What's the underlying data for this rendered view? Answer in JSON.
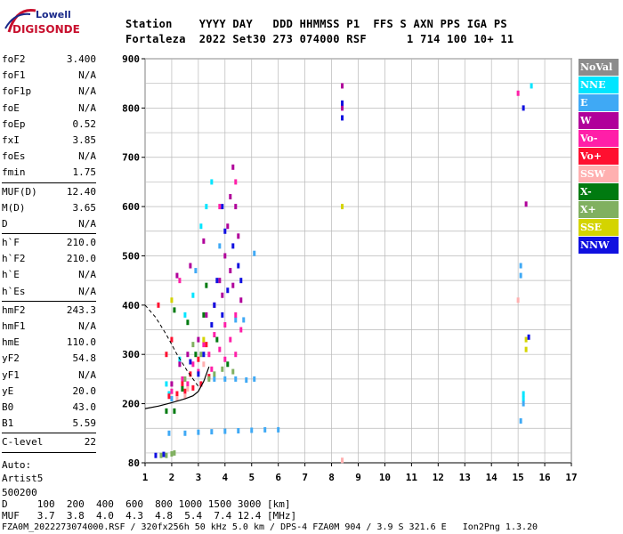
{
  "logo": {
    "line1": "Lowell",
    "line2": "DIGISONDE"
  },
  "header": {
    "line1": "Station    YYYY DAY   DDD HHMMSS P1  FFS S AXN PPS IGA PS",
    "line2": "Fortaleza  2022 Set30 273 074000 RSF      1 714 100 10+ 11"
  },
  "params": [
    [
      {
        "name": "foF2",
        "value": "3.400"
      },
      {
        "name": "foF1",
        "value": "N/A"
      },
      {
        "name": "foF1p",
        "value": "N/A"
      },
      {
        "name": "foE",
        "value": "N/A"
      },
      {
        "name": "foEp",
        "value": "0.52"
      },
      {
        "name": "fxI",
        "value": "3.85"
      },
      {
        "name": "foEs",
        "value": "N/A"
      },
      {
        "name": "fmin",
        "value": "1.75"
      }
    ],
    [
      {
        "name": "MUF(D)",
        "value": "12.40"
      },
      {
        "name": "M(D)",
        "value": "3.65"
      },
      {
        "name": "D",
        "value": "N/A"
      }
    ],
    [
      {
        "name": "h`F",
        "value": "210.0"
      },
      {
        "name": "h`F2",
        "value": "210.0"
      },
      {
        "name": "h`E",
        "value": "N/A"
      },
      {
        "name": "h`Es",
        "value": "N/A"
      }
    ],
    [
      {
        "name": "hmF2",
        "value": "243.3"
      },
      {
        "name": "hmF1",
        "value": "N/A"
      },
      {
        "name": "hmE",
        "value": "110.0"
      },
      {
        "name": "yF2",
        "value": "54.8"
      },
      {
        "name": "yF1",
        "value": "N/A"
      },
      {
        "name": "yE",
        "value": "20.0"
      },
      {
        "name": "B0",
        "value": "43.0"
      },
      {
        "name": "B1",
        "value": "5.59"
      }
    ],
    [
      {
        "name": "C-level",
        "value": "22"
      }
    ]
  ],
  "auto": {
    "line1": "Auto:",
    "line2": "Artist5",
    "line3": "500200"
  },
  "legend": [
    {
      "label": "NoVal",
      "color": "#8c8c8c"
    },
    {
      "label": "NNE",
      "color": "#00e5ff"
    },
    {
      "label": "E",
      "color": "#3fa9f5"
    },
    {
      "label": "W",
      "color": "#b0009a"
    },
    {
      "label": "Vo-",
      "color": "#ff1fa8"
    },
    {
      "label": "Vo+",
      "color": "#ff1030"
    },
    {
      "label": "SSW",
      "color": "#ffb0b0"
    },
    {
      "label": "X-",
      "color": "#007a10"
    },
    {
      "label": "X+",
      "color": "#80b060"
    },
    {
      "label": "SSE",
      "color": "#d4d400"
    },
    {
      "label": "NNW",
      "color": "#1010e0"
    }
  ],
  "footer": {
    "row1": "D     100  200  400  600  800 1000 1500 3000 [km]",
    "row2": "MUF   3.7  3.8  4.0  4.3  4.8  5.4  7.4 12.4 [MHz]",
    "row3": "FZA0M_2022273074000.RSF / 320fx256h 50 kHz 5.0 km / DPS-4 FZA0M 904 / 3.9 S 321.6 E   Ion2Png 1.3.20"
  },
  "chart_data": {
    "type": "scatter",
    "title": "",
    "xlabel": "",
    "ylabel": "",
    "xlim": [
      1,
      17
    ],
    "ylim": [
      80,
      900
    ],
    "x_ticks": [
      1,
      2,
      3,
      4,
      5,
      6,
      7,
      8,
      9,
      10,
      11,
      12,
      13,
      14,
      15,
      16,
      17
    ],
    "y_ticks": [
      80,
      200,
      300,
      400,
      500,
      600,
      700,
      800,
      900
    ],
    "grid": true,
    "legend_position": "right",
    "traces": [
      {
        "name": "trace-profile",
        "x": [
          1.0,
          1.5,
          2.0,
          2.5,
          2.8,
          3.0,
          3.2,
          3.4
        ],
        "y": [
          190,
          195,
          202,
          210,
          216,
          225,
          245,
          275
        ]
      },
      {
        "name": "trace-dashed",
        "x": [
          1.0,
          1.4,
          1.8,
          2.2,
          2.6,
          3.0
        ],
        "y": [
          400,
          375,
          340,
          300,
          265,
          235
        ]
      }
    ],
    "series": [
      {
        "name": "NNE",
        "points": [
          [
            1.9,
            220
          ],
          [
            2.3,
            290
          ],
          [
            2.8,
            420
          ],
          [
            3.1,
            560
          ],
          [
            3.3,
            600
          ],
          [
            3.5,
            650
          ],
          [
            2.5,
            380
          ],
          [
            1.8,
            240
          ],
          [
            15.2,
            210
          ],
          [
            15.2,
            220
          ],
          [
            15.5,
            845
          ]
        ]
      },
      {
        "name": "E",
        "points": [
          [
            1.9,
            140
          ],
          [
            2.5,
            140
          ],
          [
            3.0,
            142
          ],
          [
            3.5,
            143
          ],
          [
            4.0,
            144
          ],
          [
            4.5,
            145
          ],
          [
            5.0,
            146
          ],
          [
            5.5,
            147
          ],
          [
            6.0,
            147
          ],
          [
            3.6,
            250
          ],
          [
            4.0,
            250
          ],
          [
            4.4,
            250
          ],
          [
            4.8,
            248
          ],
          [
            5.1,
            250
          ],
          [
            4.4,
            370
          ],
          [
            4.7,
            370
          ],
          [
            2.0,
            210
          ],
          [
            2.9,
            470
          ],
          [
            3.8,
            520
          ],
          [
            15.1,
            480
          ],
          [
            15.1,
            460
          ],
          [
            15.1,
            165
          ],
          [
            15.2,
            200
          ],
          [
            5.1,
            505
          ]
        ]
      },
      {
        "name": "W",
        "points": [
          [
            3.8,
            450
          ],
          [
            4.0,
            500
          ],
          [
            4.1,
            560
          ],
          [
            4.2,
            620
          ],
          [
            4.3,
            680
          ],
          [
            4.4,
            600
          ],
          [
            3.9,
            420
          ],
          [
            4.5,
            540
          ],
          [
            4.3,
            440
          ],
          [
            3.6,
            400
          ],
          [
            3.3,
            380
          ],
          [
            3.0,
            330
          ],
          [
            2.6,
            300
          ],
          [
            2.3,
            280
          ],
          [
            2.0,
            240
          ],
          [
            2.7,
            480
          ],
          [
            2.2,
            460
          ],
          [
            3.2,
            530
          ],
          [
            4.2,
            470
          ],
          [
            4.6,
            410
          ],
          [
            8.4,
            845
          ],
          [
            8.4,
            800
          ],
          [
            15.3,
            605
          ]
        ]
      },
      {
        "name": "Vo-",
        "points": [
          [
            2.0,
            225
          ],
          [
            2.4,
            250
          ],
          [
            2.8,
            280
          ],
          [
            3.2,
            320
          ],
          [
            3.6,
            340
          ],
          [
            4.0,
            360
          ],
          [
            4.4,
            380
          ],
          [
            3.4,
            300
          ],
          [
            3.0,
            265
          ],
          [
            2.6,
            240
          ],
          [
            3.8,
            310
          ],
          [
            4.2,
            330
          ],
          [
            4.6,
            350
          ],
          [
            3.5,
            270
          ],
          [
            4.0,
            290
          ],
          [
            4.4,
            300
          ],
          [
            2.3,
            450
          ],
          [
            3.8,
            600
          ],
          [
            4.4,
            650
          ],
          [
            15.0,
            830
          ]
        ]
      },
      {
        "name": "Vo+",
        "points": [
          [
            1.9,
            215
          ],
          [
            2.2,
            220
          ],
          [
            2.5,
            225
          ],
          [
            2.8,
            232
          ],
          [
            3.1,
            240
          ],
          [
            3.4,
            255
          ],
          [
            3.0,
            290
          ],
          [
            3.3,
            320
          ],
          [
            2.7,
            260
          ],
          [
            2.4,
            240
          ],
          [
            1.8,
            300
          ],
          [
            1.5,
            400
          ],
          [
            2.0,
            330
          ]
        ]
      },
      {
        "name": "SSW",
        "points": [
          [
            2.2,
            210
          ],
          [
            2.5,
            215
          ],
          [
            2.6,
            230
          ],
          [
            3.2,
            280
          ],
          [
            8.4,
            85
          ],
          [
            15.0,
            410
          ]
        ]
      },
      {
        "name": "X-",
        "points": [
          [
            1.8,
            185
          ],
          [
            2.1,
            185
          ],
          [
            2.4,
            230
          ],
          [
            2.9,
            300
          ],
          [
            3.2,
            380
          ],
          [
            3.7,
            330
          ],
          [
            4.1,
            280
          ],
          [
            2.6,
            365
          ],
          [
            3.3,
            440
          ],
          [
            2.1,
            390
          ]
        ]
      },
      {
        "name": "X+",
        "points": [
          [
            1.6,
            95
          ],
          [
            1.8,
            95
          ],
          [
            2.0,
            98
          ],
          [
            2.1,
            100
          ],
          [
            2.5,
            250
          ],
          [
            3.1,
            300
          ],
          [
            3.4,
            250
          ],
          [
            3.6,
            260
          ],
          [
            2.8,
            320
          ],
          [
            3.9,
            270
          ],
          [
            4.3,
            265
          ]
        ]
      },
      {
        "name": "SSE",
        "points": [
          [
            8.4,
            600
          ],
          [
            15.3,
            310
          ],
          [
            15.3,
            330
          ],
          [
            3.2,
            330
          ],
          [
            2.0,
            410
          ]
        ]
      },
      {
        "name": "NNW",
        "points": [
          [
            1.4,
            95
          ],
          [
            1.7,
            97
          ],
          [
            3.6,
            400
          ],
          [
            3.9,
            380
          ],
          [
            4.1,
            430
          ],
          [
            4.3,
            520
          ],
          [
            3.7,
            450
          ],
          [
            4.0,
            550
          ],
          [
            4.5,
            480
          ],
          [
            3.5,
            360
          ],
          [
            3.2,
            300
          ],
          [
            3.0,
            260
          ],
          [
            2.7,
            285
          ],
          [
            3.9,
            600
          ],
          [
            4.6,
            450
          ],
          [
            8.4,
            780
          ],
          [
            8.4,
            810
          ],
          [
            15.2,
            800
          ],
          [
            15.4,
            335
          ]
        ]
      }
    ]
  }
}
